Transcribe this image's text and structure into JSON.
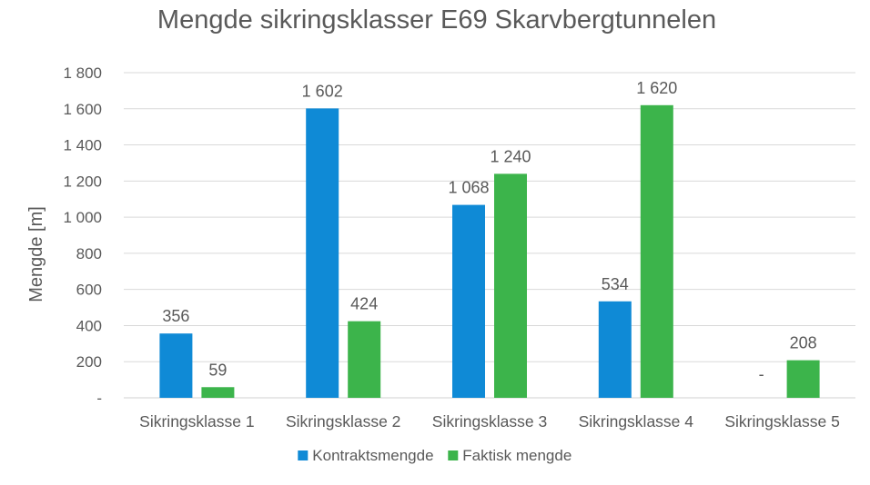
{
  "chart_data": {
    "type": "bar",
    "title": "Mengde sikringsklasser E69 Skarvbergtunnelen",
    "xlabel": "",
    "ylabel": "Mengde [m]",
    "ylim": [
      0,
      1800
    ],
    "yticks": [
      0,
      200,
      400,
      600,
      800,
      1000,
      1200,
      1400,
      1600,
      1800
    ],
    "ytick_labels": [
      "-",
      "200",
      "400",
      "600",
      "800",
      "1 000",
      "1 200",
      "1 400",
      "1 600",
      "1 800"
    ],
    "categories": [
      "Sikringsklasse 1",
      "Sikringsklasse 2",
      "Sikringsklasse 3",
      "Sikringsklasse 4",
      "Sikringsklasse 5"
    ],
    "series": [
      {
        "name": "Kontraktsmengde",
        "color": "#0f8ad6",
        "values": [
          356,
          1602,
          1068,
          534,
          0
        ],
        "labels": [
          "356",
          "1 602",
          "1 068",
          "534",
          "-"
        ]
      },
      {
        "name": "Faktisk mengde",
        "color": "#3cb44b",
        "values": [
          59,
          424,
          1240,
          1620,
          208
        ],
        "labels": [
          "59",
          "424",
          "1 240",
          "1 620",
          "208"
        ]
      }
    ],
    "grid": true,
    "legend": "bottom"
  }
}
